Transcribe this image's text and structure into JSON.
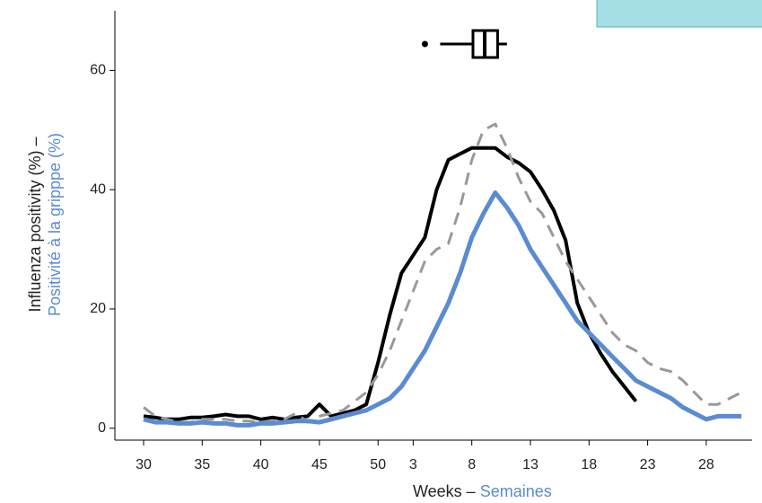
{
  "chart_data": {
    "type": "line",
    "y_label_main": "Influenza positivity (%) –",
    "y_label_sub": "Positivité à la gripppe (%)",
    "x_label_main": "Weeks –",
    "x_label_sub": "Semaines",
    "categories": [
      30,
      null,
      null,
      null,
      null,
      35,
      null,
      null,
      null,
      null,
      40,
      null,
      null,
      null,
      null,
      45,
      null,
      null,
      null,
      null,
      50,
      null,
      null,
      3,
      null,
      null,
      null,
      null,
      8,
      null,
      null,
      null,
      null,
      13,
      null,
      null,
      null,
      null,
      18,
      null,
      null,
      null,
      null,
      23,
      null,
      null,
      null,
      null,
      28,
      null,
      null,
      null
    ],
    "ylim": [
      -2,
      70
    ],
    "yticks": [
      0,
      20,
      40,
      60
    ],
    "series": [
      {
        "color": "#000000",
        "dash": false,
        "values": [
          2,
          1.8,
          1.5,
          1.5,
          1.8,
          1.8,
          2,
          2.3,
          2,
          2,
          1.5,
          1.8,
          1.5,
          1.8,
          2,
          4,
          2,
          2.5,
          3,
          4,
          11,
          19,
          26,
          29,
          32,
          40,
          45,
          46,
          47,
          47,
          47,
          45.5,
          44.5,
          43,
          40,
          36.5,
          31.5,
          21,
          16,
          12.5,
          9.5,
          7,
          4.5,
          null,
          null,
          null,
          null,
          null,
          null,
          null,
          null,
          null
        ]
      },
      {
        "color": "#999999",
        "dash": true,
        "values": [
          3.5,
          2,
          1.5,
          1,
          1,
          1.5,
          1.5,
          1.5,
          1.2,
          1.2,
          1,
          1.2,
          1.5,
          2.5,
          1,
          2,
          2.5,
          3,
          4.5,
          6,
          9,
          13,
          18,
          23,
          28,
          30,
          31,
          37,
          45,
          50,
          51,
          47,
          42,
          38,
          36,
          32,
          28,
          25,
          22,
          19,
          16,
          14,
          13,
          11,
          10,
          9.5,
          8,
          6,
          4,
          4,
          5,
          6
        ]
      },
      {
        "color": "#5b8bd0",
        "dash": false,
        "values": [
          1.5,
          1,
          1,
          0.8,
          0.8,
          1,
          0.8,
          0.8,
          0.5,
          0.5,
          0.8,
          0.8,
          1,
          1.2,
          1.2,
          1,
          1.5,
          2,
          2.5,
          3,
          4,
          5,
          7,
          10,
          13,
          17,
          21,
          26,
          32,
          36,
          39.5,
          37,
          34,
          30,
          27,
          24,
          21,
          18,
          16,
          14,
          12,
          10,
          8,
          7,
          6,
          5,
          3.5,
          2.5,
          1.5,
          2,
          2,
          2
        ]
      }
    ],
    "boxplot": {
      "outlier": 24,
      "whisker_low": 25.3,
      "q1": 28.1,
      "median": 29.1,
      "q3": 30.2,
      "whisker_high": 31
    }
  }
}
